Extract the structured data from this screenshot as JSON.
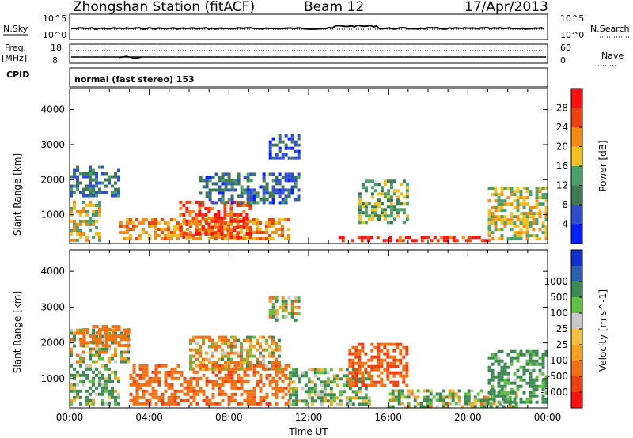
{
  "header": {
    "station": "Zhongshan Station (fitACF)",
    "beam": "Beam 12",
    "date": "17/Apr/2013"
  },
  "top_panels": {
    "nsky_label": "N.Sky",
    "nsky_ticks": [
      "10^5",
      "10^0"
    ],
    "nsearch_label": "N.Search",
    "nsearch_ticks": [
      "10^5",
      "10^0"
    ],
    "freq_label": "Freq.",
    "freq_unit": "[MHz]",
    "freq_ticks": [
      "18",
      "8"
    ],
    "nave_label": "Nave",
    "nave_ticks": [
      "60",
      "0"
    ],
    "cpid_label": "CPID",
    "cpid_text": "normal (fast stereo) 153"
  },
  "chart_data": [
    {
      "type": "heatmap",
      "name": "power",
      "xlabel": "",
      "ylabel": "Slant Range [km]",
      "x_ticks": [],
      "x_range_hours": [
        0,
        24
      ],
      "y_ticks": [
        1000,
        2000,
        3000,
        4000
      ],
      "ylim": [
        180,
        4600
      ],
      "colorbar_label": "Power [dB]",
      "colorbar_ticks": [
        "4",
        "8",
        "12",
        "16",
        "20",
        "24",
        "28"
      ],
      "colors": [
        "#0020ff",
        "#2f4fd0",
        "#3d7a52",
        "#4aa06a",
        "#f4c020",
        "#f58a10",
        "#f04010",
        "#ff1010"
      ],
      "echo_regions": [
        {
          "t": [
            0.0,
            1.5
          ],
          "r": [
            300,
            1400
          ],
          "value": 18
        },
        {
          "t": [
            0.0,
            2.5
          ],
          "r": [
            1500,
            2400
          ],
          "value": 9
        },
        {
          "t": [
            2.5,
            11.0
          ],
          "r": [
            300,
            900
          ],
          "value": 22
        },
        {
          "t": [
            5.5,
            9.0
          ],
          "r": [
            400,
            1400
          ],
          "value": 26
        },
        {
          "t": [
            6.5,
            11.5
          ],
          "r": [
            1300,
            2200
          ],
          "value": 8
        },
        {
          "t": [
            10.0,
            11.5
          ],
          "r": [
            2600,
            3300
          ],
          "value": 6
        },
        {
          "t": [
            13.5,
            21.0
          ],
          "r": [
            250,
            400
          ],
          "value": 27
        },
        {
          "t": [
            14.5,
            17.0
          ],
          "r": [
            800,
            2000
          ],
          "value": 14
        },
        {
          "t": [
            21.0,
            24.0
          ],
          "r": [
            300,
            1800
          ],
          "value": 17
        }
      ]
    },
    {
      "type": "heatmap",
      "name": "velocity",
      "xlabel": "Time UT",
      "ylabel": "Slant Range [km]",
      "x_ticks": [
        "00:00",
        "04:00",
        "08:00",
        "12:00",
        "16:00",
        "20:00",
        "00:00"
      ],
      "x_range_hours": [
        0,
        24
      ],
      "y_ticks": [
        1000,
        2000,
        3000,
        4000
      ],
      "ylim": [
        180,
        4600
      ],
      "colorbar_label": "Velocity [m s^-1]",
      "colorbar_ticks": [
        "-1000",
        "-500",
        "-100",
        "-25",
        "25",
        "100",
        "500",
        "1000"
      ],
      "colors": [
        "#ff1010",
        "#f04010",
        "#f57010",
        "#f5a020",
        "#f5c040",
        "#c8c8c8",
        "#60c040",
        "#3d8a52",
        "#2a60b0",
        "#1030d0"
      ],
      "echo_regions": [
        {
          "t": [
            0.0,
            2.5
          ],
          "r": [
            300,
            1400
          ],
          "value": 150
        },
        {
          "t": [
            0.0,
            3.0
          ],
          "r": [
            1500,
            2400
          ],
          "value": 10
        },
        {
          "t": [
            0.5,
            3.0
          ],
          "r": [
            1900,
            2500
          ],
          "value": -300
        },
        {
          "t": [
            3.0,
            11.0
          ],
          "r": [
            300,
            1400
          ],
          "value": -400
        },
        {
          "t": [
            6.0,
            10.5
          ],
          "r": [
            1300,
            2200
          ],
          "value": -60
        },
        {
          "t": [
            10.0,
            11.5
          ],
          "r": [
            2600,
            3300
          ],
          "value": 20
        },
        {
          "t": [
            11.0,
            15.0
          ],
          "r": [
            300,
            1300
          ],
          "value": 120
        },
        {
          "t": [
            14.0,
            17.0
          ],
          "r": [
            800,
            2000
          ],
          "value": -500
        },
        {
          "t": [
            16.0,
            22.5
          ],
          "r": [
            250,
            700
          ],
          "value": 80
        },
        {
          "t": [
            21.0,
            24.0
          ],
          "r": [
            300,
            1800
          ],
          "value": 200
        }
      ]
    }
  ]
}
